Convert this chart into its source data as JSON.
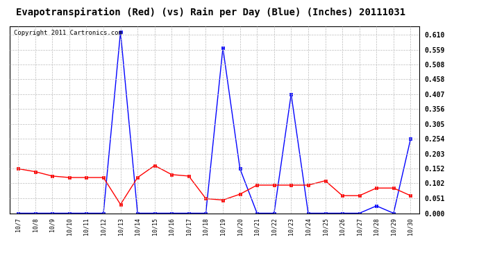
{
  "title": "Evapotranspiration (Red) (vs) Rain per Day (Blue) (Inches) 20111031",
  "copyright": "Copyright 2011 Cartronics.com",
  "x_labels": [
    "10/7",
    "10/8",
    "10/9",
    "10/10",
    "10/11",
    "10/12",
    "10/13",
    "10/14",
    "10/15",
    "10/16",
    "10/17",
    "10/18",
    "10/19",
    "10/20",
    "10/21",
    "10/22",
    "10/23",
    "10/24",
    "10/25",
    "10/26",
    "10/27",
    "10/28",
    "10/29",
    "10/30"
  ],
  "blue_rain": [
    0.0,
    0.0,
    0.0,
    0.0,
    0.0,
    0.0,
    0.62,
    0.0,
    0.0,
    0.0,
    0.0,
    0.0,
    0.565,
    0.152,
    0.0,
    0.0,
    0.407,
    0.0,
    0.0,
    0.0,
    0.0,
    0.025,
    0.0,
    0.254
  ],
  "red_et": [
    0.152,
    0.142,
    0.127,
    0.122,
    0.122,
    0.122,
    0.03,
    0.122,
    0.163,
    0.132,
    0.127,
    0.05,
    0.045,
    0.065,
    0.096,
    0.096,
    0.096,
    0.096,
    0.111,
    0.06,
    0.06,
    0.086,
    0.086,
    0.06
  ],
  "ylim": [
    0.0,
    0.64
  ],
  "yticks": [
    0.0,
    0.051,
    0.102,
    0.152,
    0.203,
    0.254,
    0.305,
    0.356,
    0.407,
    0.458,
    0.508,
    0.559,
    0.61
  ],
  "background_color": "#ffffff",
  "plot_bg_color": "#ffffff",
  "grid_color": "#bbbbbb",
  "blue_color": "#0000ff",
  "red_color": "#ff0000",
  "title_fontsize": 10,
  "copyright_fontsize": 6.5
}
